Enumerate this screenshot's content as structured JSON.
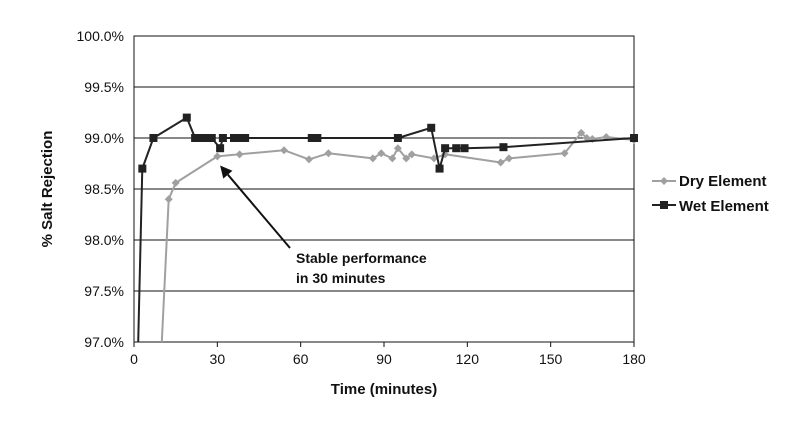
{
  "chart_data": {
    "type": "line",
    "title": "",
    "xlabel": "Time (minutes)",
    "ylabel": "% Salt Rejection",
    "xlim": [
      0,
      180
    ],
    "ylim": [
      97.0,
      100.0
    ],
    "x_ticks": [
      "0",
      "30",
      "60",
      "90",
      "120",
      "150",
      "180"
    ],
    "y_ticks": [
      "97.0%",
      "97.5%",
      "98.0%",
      "98.5%",
      "99.0%",
      "99.5%",
      "100.0%"
    ],
    "grid": "horizontal",
    "legend_position": "right",
    "series": [
      {
        "name": "Dry Element",
        "color": "#a0a0a0",
        "marker": "diamond",
        "points": [
          [
            10,
            97.0
          ],
          [
            12.5,
            98.4
          ],
          [
            15,
            98.56
          ],
          [
            30,
            98.82
          ],
          [
            38,
            98.84
          ],
          [
            54,
            98.88
          ],
          [
            63,
            98.79
          ],
          [
            70,
            98.85
          ],
          [
            86,
            98.8
          ],
          [
            89,
            98.85
          ],
          [
            93,
            98.8
          ],
          [
            95,
            98.9
          ],
          [
            98,
            98.8
          ],
          [
            100,
            98.84
          ],
          [
            108,
            98.8
          ],
          [
            112,
            98.84
          ],
          [
            132,
            98.76
          ],
          [
            135,
            98.8
          ],
          [
            155,
            98.85
          ],
          [
            161,
            99.05
          ],
          [
            163,
            99.0
          ],
          [
            165,
            98.99
          ],
          [
            170,
            99.01
          ],
          [
            180,
            98.98
          ]
        ]
      },
      {
        "name": "Wet Element",
        "color": "#222222",
        "marker": "square",
        "points": [
          [
            1.5,
            97.0
          ],
          [
            3,
            98.7
          ],
          [
            7,
            99.0
          ],
          [
            19,
            99.2
          ],
          [
            22,
            99.0
          ],
          [
            24,
            99.0
          ],
          [
            26,
            99.0
          ],
          [
            28,
            99.0
          ],
          [
            31,
            98.9
          ],
          [
            32,
            99.0
          ],
          [
            36,
            99.0
          ],
          [
            38,
            99.0
          ],
          [
            40,
            99.0
          ],
          [
            64,
            99.0
          ],
          [
            66,
            99.0
          ],
          [
            95,
            99.0
          ],
          [
            107,
            99.1
          ],
          [
            110,
            98.7
          ],
          [
            112,
            98.9
          ],
          [
            116,
            98.9
          ],
          [
            119,
            98.9
          ],
          [
            133,
            98.91
          ],
          [
            180,
            99.0
          ]
        ]
      }
    ],
    "annotation": {
      "line1": "Stable performance",
      "line2": "in 30 minutes",
      "arrow_to": [
        31,
        98.73
      ]
    }
  }
}
